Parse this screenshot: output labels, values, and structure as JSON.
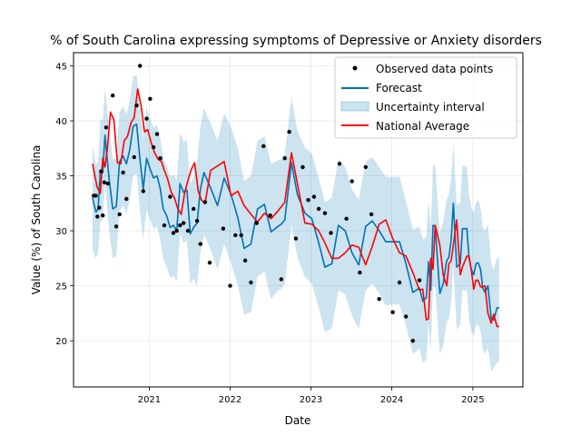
{
  "chart_data": {
    "type": "line",
    "title": "% of South Carolina expressing symptoms of Depressive or Anxiety disorders",
    "xlabel": "Date",
    "ylabel": "Value (%) of South Carolina",
    "xlim": [
      "2020-01-25",
      "2025-08-15"
    ],
    "ylim": [
      15.8,
      46.2
    ],
    "x_ticks": [
      "2021-01-01",
      "2022-01-01",
      "2023-01-01",
      "2024-01-01",
      "2025-01-01"
    ],
    "x_tick_labels": [
      "2021",
      "2022",
      "2023",
      "2024",
      "2025"
    ],
    "y_ticks": [
      20,
      25,
      30,
      35,
      40,
      45
    ],
    "y_tick_labels": [
      "20",
      "25",
      "30",
      "35",
      "40",
      "45"
    ],
    "grid": true,
    "legend_position": "top-right",
    "legend": [
      "Observed data points",
      "Forecast",
      "Uncertainty interval",
      "National Average"
    ],
    "colors": {
      "observed": "#000000",
      "forecast": "#0072B2",
      "uncertainty": "#0072B2",
      "national": "#ff0000"
    },
    "observed": {
      "x": [
        "2020-04-25",
        "2020-05-05",
        "2020-05-12",
        "2020-05-20",
        "2020-05-28",
        "2020-06-05",
        "2020-06-12",
        "2020-06-20",
        "2020-06-28",
        "2020-07-20",
        "2020-08-05",
        "2020-08-20",
        "2020-09-05",
        "2020-09-20",
        "2020-10-25",
        "2020-11-05",
        "2020-11-20",
        "2020-12-05",
        "2020-12-20",
        "2021-01-05",
        "2021-01-20",
        "2021-02-05",
        "2021-02-20",
        "2021-03-10",
        "2021-04-05",
        "2021-04-20",
        "2021-05-05",
        "2021-05-20",
        "2021-06-05",
        "2021-06-25",
        "2021-07-20",
        "2021-08-05",
        "2021-08-20",
        "2021-09-10",
        "2021-10-01",
        "2021-12-01",
        "2022-01-01",
        "2022-01-25",
        "2022-02-20",
        "2022-03-10",
        "2022-04-05",
        "2022-05-01",
        "2022-06-01",
        "2022-07-01",
        "2022-08-20",
        "2022-09-05",
        "2022-09-25",
        "2022-10-25",
        "2022-11-25",
        "2022-12-20",
        "2023-01-15",
        "2023-02-05",
        "2023-03-05",
        "2023-04-01",
        "2023-05-10",
        "2023-06-10",
        "2023-07-05",
        "2023-08-10",
        "2023-09-05",
        "2023-10-01",
        "2023-11-05",
        "2024-01-05",
        "2024-02-05",
        "2024-03-05",
        "2024-04-05",
        "2024-05-05"
      ],
      "y": [
        33.2,
        33.2,
        31.3,
        32.1,
        35.4,
        31.4,
        34.4,
        39.4,
        34.3,
        42.3,
        30.4,
        31.5,
        35.3,
        32.9,
        36.7,
        41.4,
        45.0,
        33.6,
        40.2,
        42.0,
        37.6,
        38.8,
        36.6,
        30.5,
        33.1,
        29.8,
        30.0,
        30.5,
        30.7,
        30.0,
        32.0,
        30.9,
        28.8,
        32.6,
        27.1,
        30.2,
        25.0,
        29.6,
        29.6,
        27.3,
        25.3,
        30.7,
        37.7,
        31.4,
        25.6,
        36.6,
        39.0,
        29.3,
        35.8,
        32.8,
        33.1,
        32.0,
        31.6,
        29.8,
        36.1,
        31.1,
        34.5,
        26.2,
        35.8,
        31.5,
        23.8,
        22.6,
        25.3,
        22.2,
        20.0,
        25.5
      ]
    },
    "forecast": {
      "x": [
        "2020-04-20",
        "2020-05-05",
        "2020-05-15",
        "2020-05-25",
        "2020-06-05",
        "2020-06-15",
        "2020-06-25",
        "2020-07-05",
        "2020-07-20",
        "2020-08-05",
        "2020-08-20",
        "2020-09-05",
        "2020-09-20",
        "2020-10-05",
        "2020-10-20",
        "2020-11-05",
        "2020-11-20",
        "2020-12-05",
        "2020-12-20",
        "2021-01-05",
        "2021-01-20",
        "2021-02-05",
        "2021-02-20",
        "2021-03-05",
        "2021-03-20",
        "2021-04-05",
        "2021-04-20",
        "2021-05-05",
        "2021-05-20",
        "2021-06-05",
        "2021-06-20",
        "2021-07-05",
        "2021-07-20",
        "2021-08-05",
        "2021-08-20",
        "2021-09-05",
        "2021-09-20",
        "2021-10-05",
        "2021-11-05",
        "2021-12-05",
        "2022-01-05",
        "2022-02-05",
        "2022-03-05",
        "2022-04-05",
        "2022-05-05",
        "2022-06-05",
        "2022-07-05",
        "2022-08-05",
        "2022-08-20",
        "2022-09-05",
        "2022-10-05",
        "2022-11-01",
        "2022-12-05",
        "2023-01-05",
        "2023-02-05",
        "2023-03-05",
        "2023-04-05",
        "2023-05-05",
        "2023-06-05",
        "2023-07-05",
        "2023-08-05",
        "2023-09-05",
        "2023-10-05",
        "2023-11-05",
        "2023-12-05",
        "2024-01-05",
        "2024-02-05",
        "2024-03-05",
        "2024-04-05",
        "2024-05-05",
        "2024-05-20",
        "2024-06-05",
        "2024-06-15",
        "2024-06-25",
        "2024-07-05",
        "2024-07-15",
        "2024-08-05",
        "2024-08-20",
        "2024-09-05",
        "2024-09-15",
        "2024-09-25",
        "2024-10-05",
        "2024-10-20",
        "2024-11-05",
        "2024-11-15",
        "2024-12-05",
        "2024-12-15",
        "2024-12-25",
        "2025-01-05",
        "2025-01-15",
        "2025-01-25",
        "2025-02-05",
        "2025-02-15",
        "2025-02-25",
        "2025-03-10",
        "2025-03-25",
        "2025-04-05",
        "2025-04-20",
        "2025-04-30"
      ],
      "y": [
        33.0,
        31.7,
        32.0,
        35.5,
        35.3,
        38.7,
        36.5,
        34.5,
        32.0,
        32.2,
        36.3,
        36.8,
        36.1,
        37.4,
        39.5,
        39.7,
        36.5,
        33.8,
        36.6,
        35.6,
        34.8,
        35.0,
        33.8,
        32.0,
        31.4,
        30.3,
        30.5,
        30.0,
        34.3,
        33.5,
        33.7,
        29.7,
        30.3,
        30.7,
        33.8,
        35.3,
        34.6,
        33.9,
        32.3,
        34.8,
        33.3,
        31.2,
        28.4,
        28.8,
        32.0,
        32.4,
        29.9,
        30.4,
        30.6,
        31.0,
        36.2,
        33.3,
        31.6,
        31.1,
        28.9,
        26.7,
        27.0,
        30.5,
        30.0,
        28.0,
        26.9,
        30.4,
        30.9,
        30.0,
        29.0,
        29.0,
        29.0,
        27.0,
        24.4,
        24.8,
        23.6,
        23.9,
        27.2,
        24.6,
        30.5,
        30.4,
        24.3,
        25.2,
        27.3,
        27.6,
        29.2,
        32.5,
        26.7,
        27.0,
        30.2,
        30.2,
        27.5,
        26.5,
        26.0,
        27.0,
        27.1,
        26.5,
        24.8,
        24.4,
        25.0,
        22.0,
        21.9,
        23.0,
        23.0
      ]
    },
    "uncertainty": {
      "lower": [
        28.3,
        27.5,
        28.0,
        30.8,
        31.0,
        34.3,
        32.0,
        29.8,
        27.5,
        27.7,
        31.8,
        32.3,
        31.5,
        32.9,
        35.0,
        35.2,
        31.8,
        29.2,
        32.0,
        31.0,
        30.2,
        30.4,
        29.2,
        27.4,
        26.8,
        25.7,
        25.9,
        25.4,
        29.7,
        28.9,
        29.1,
        25.1,
        25.7,
        25.0,
        28.0,
        29.6,
        29.0,
        28.3,
        26.5,
        28.8,
        27.1,
        25.0,
        22.4,
        22.6,
        25.8,
        26.3,
        23.8,
        24.6,
        24.7,
        25.2,
        30.5,
        27.6,
        25.8,
        25.2,
        23.0,
        20.8,
        21.1,
        24.6,
        24.2,
        22.3,
        21.1,
        24.6,
        25.2,
        24.3,
        23.2,
        23.3,
        23.3,
        21.4,
        18.8,
        19.3,
        18.0,
        18.3,
        21.6,
        19.1,
        25.0,
        24.8,
        18.8,
        19.5,
        21.7,
        22.0,
        23.6,
        27.0,
        21.0,
        21.5,
        24.6,
        24.6,
        21.9,
        20.9,
        20.4,
        21.4,
        21.5,
        20.9,
        19.2,
        18.8,
        19.4,
        17.2,
        17.5,
        18.0,
        18.2
      ],
      "upper": [
        37.7,
        36.0,
        36.3,
        40.2,
        40.0,
        43.0,
        41.0,
        39.2,
        36.5,
        36.6,
        40.8,
        41.3,
        40.6,
        41.9,
        44.0,
        44.2,
        41.2,
        38.4,
        41.2,
        40.2,
        39.4,
        39.6,
        38.4,
        36.6,
        36.0,
        34.9,
        35.1,
        34.6,
        38.9,
        38.1,
        38.3,
        34.3,
        34.9,
        36.3,
        39.5,
        41.2,
        40.4,
        39.8,
        38.2,
        40.7,
        39.4,
        37.5,
        34.5,
        35.0,
        38.2,
        38.6,
        36.1,
        36.4,
        36.5,
        37.0,
        42.1,
        39.1,
        37.6,
        37.0,
        34.8,
        32.6,
        33.0,
        36.5,
        35.8,
        33.8,
        32.8,
        36.3,
        36.7,
        35.8,
        34.9,
        34.9,
        34.9,
        32.7,
        30.1,
        30.4,
        29.2,
        29.5,
        32.8,
        30.2,
        36.0,
        35.9,
        29.8,
        30.8,
        32.9,
        33.3,
        34.8,
        38.0,
        32.3,
        32.6,
        35.9,
        35.9,
        33.1,
        32.2,
        31.6,
        32.6,
        32.8,
        32.1,
        30.3,
        30.0,
        30.6,
        27.0,
        26.5,
        27.5,
        27.6
      ]
    },
    "national": {
      "x": [
        "2020-04-20",
        "2020-05-10",
        "2020-05-25",
        "2020-06-05",
        "2020-06-15",
        "2020-06-25",
        "2020-07-10",
        "2020-07-25",
        "2020-08-10",
        "2020-08-25",
        "2020-09-10",
        "2020-09-25",
        "2020-10-10",
        "2020-10-25",
        "2020-11-10",
        "2020-11-25",
        "2020-12-10",
        "2020-12-25",
        "2021-01-10",
        "2021-01-25",
        "2021-02-10",
        "2021-02-25",
        "2021-03-10",
        "2021-03-25",
        "2021-04-10",
        "2021-04-25",
        "2021-05-10",
        "2021-05-25",
        "2021-06-10",
        "2021-06-25",
        "2021-07-10",
        "2021-07-25",
        "2021-08-10",
        "2021-08-25",
        "2021-09-10",
        "2021-10-05",
        "2021-11-05",
        "2021-12-05",
        "2022-01-05",
        "2022-02-05",
        "2022-03-05",
        "2022-04-05",
        "2022-05-05",
        "2022-06-05",
        "2022-07-05",
        "2022-08-05",
        "2022-09-05",
        "2022-10-05",
        "2022-11-01",
        "2022-12-05",
        "2023-01-05",
        "2023-02-05",
        "2023-03-05",
        "2023-04-05",
        "2023-05-05",
        "2023-06-05",
        "2023-07-05",
        "2023-08-05",
        "2023-09-05",
        "2023-10-05",
        "2023-11-05",
        "2023-12-05",
        "2024-01-05",
        "2024-02-05",
        "2024-03-05",
        "2024-04-05",
        "2024-05-05",
        "2024-05-20",
        "2024-06-05",
        "2024-06-15",
        "2024-06-25",
        "2024-07-05",
        "2024-07-15",
        "2024-08-05",
        "2024-08-20",
        "2024-09-05",
        "2024-09-15",
        "2024-09-25",
        "2024-10-05",
        "2024-10-20",
        "2024-11-05",
        "2024-11-15",
        "2024-12-05",
        "2024-12-15",
        "2024-12-25",
        "2025-01-05",
        "2025-01-15",
        "2025-01-25",
        "2025-02-05",
        "2025-02-15",
        "2025-02-25",
        "2025-03-10",
        "2025-03-25",
        "2025-04-05",
        "2025-04-20",
        "2025-04-30"
      ],
      "y": [
        36.1,
        34.0,
        33.4,
        36.6,
        35.8,
        37.3,
        40.8,
        40.1,
        36.2,
        36.1,
        38.2,
        38.6,
        39.8,
        40.3,
        42.9,
        41.4,
        39.0,
        39.2,
        38.0,
        37.1,
        36.5,
        36.3,
        35.5,
        34.7,
        33.5,
        33.0,
        32.0,
        31.5,
        33.5,
        34.6,
        35.6,
        36.2,
        33.6,
        32.8,
        32.5,
        35.5,
        35.9,
        36.3,
        33.2,
        33.6,
        32.3,
        31.5,
        30.8,
        31.6,
        31.1,
        31.8,
        32.6,
        37.1,
        34.3,
        30.7,
        30.6,
        30.0,
        28.9,
        27.5,
        27.5,
        28.0,
        28.7,
        28.5,
        26.9,
        28.6,
        30.6,
        31.0,
        29.3,
        28.0,
        27.7,
        26.2,
        24.6,
        24.7,
        21.9,
        22.0,
        27.5,
        26.5,
        30.5,
        28.7,
        26.0,
        25.0,
        27.0,
        27.3,
        28.7,
        31.0,
        26.0,
        26.7,
        27.7,
        27.7,
        26.4,
        24.7,
        25.5,
        25.5,
        24.9,
        24.9,
        25.0,
        22.5,
        21.6,
        22.4,
        21.3,
        21.3
      ]
    }
  }
}
